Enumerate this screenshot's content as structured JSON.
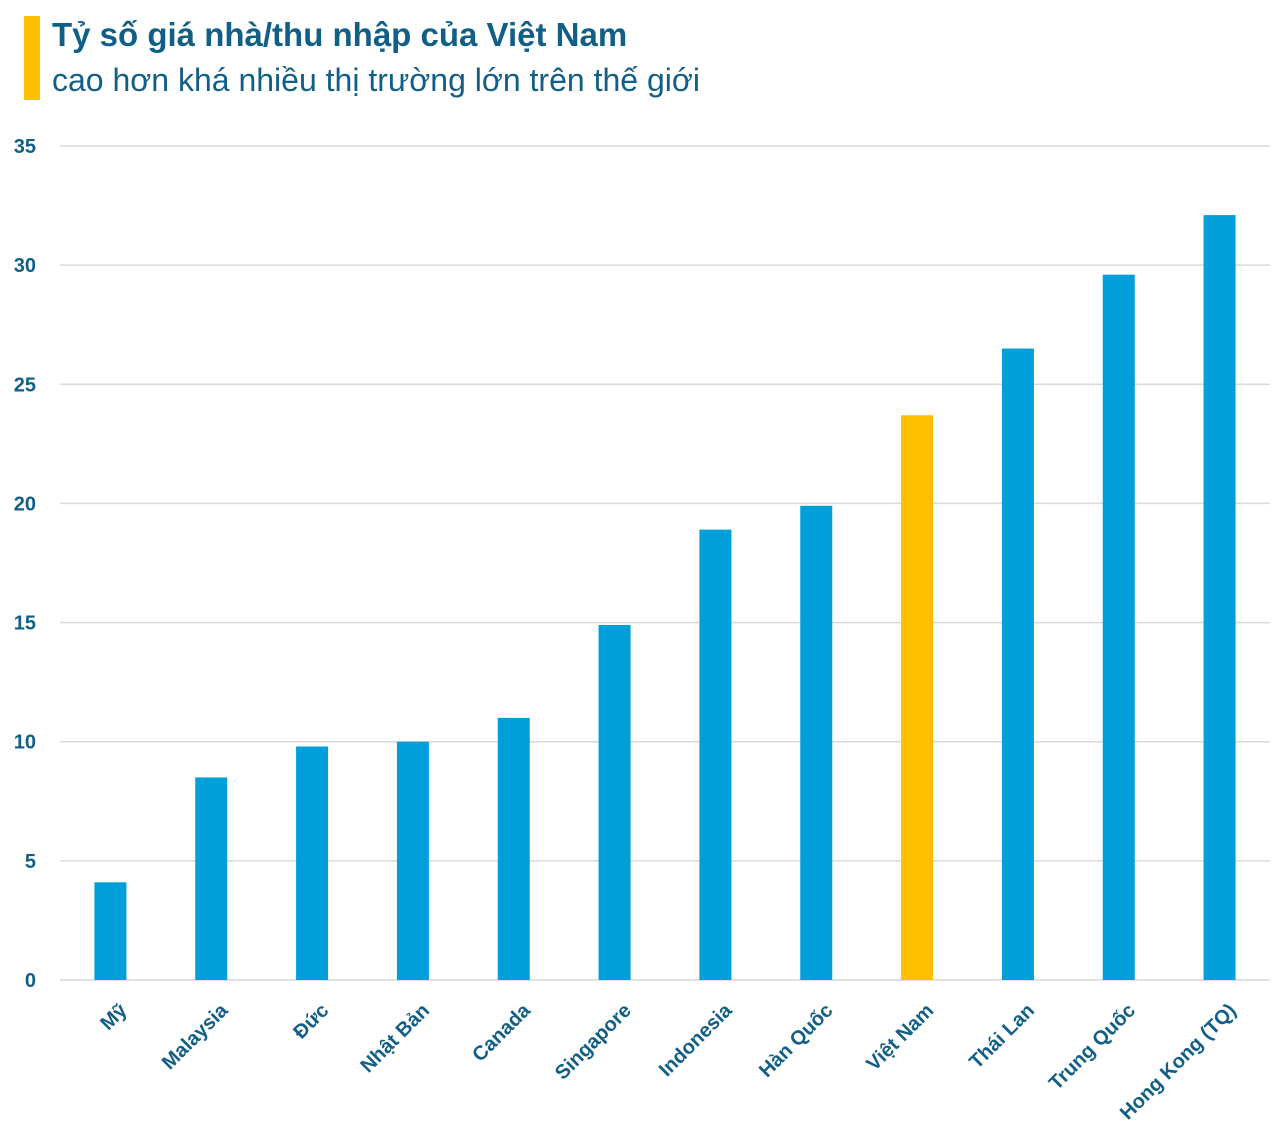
{
  "header": {
    "title": "Tỷ số giá nhà/thu nhập của Việt Nam",
    "subtitle": "cao hơn khá nhiều thị trường lớn trên thế giới"
  },
  "colors": {
    "bar": "#009FD9",
    "highlight": "#FFC000",
    "text": "#115F86",
    "grid": "#D9D9D9"
  },
  "chart_data": {
    "type": "bar",
    "title": "Tỷ số giá nhà/thu nhập của Việt Nam cao hơn khá nhiều thị trường lớn trên thế giới",
    "categories": [
      "Mỹ",
      "Malaysia",
      "Đức",
      "Nhật Bản",
      "Canada",
      "Singapore",
      "Indonesia",
      "Hàn Quốc",
      "Việt Nam",
      "Thái Lan",
      "Trung Quốc",
      "Hong Kong (TQ)"
    ],
    "values": [
      4.1,
      8.5,
      9.8,
      10.0,
      11.0,
      14.9,
      18.9,
      19.9,
      23.7,
      26.5,
      29.6,
      32.1
    ],
    "highlight_category": "Việt Nam",
    "ylim": [
      0,
      35
    ],
    "yticks": [
      0,
      5,
      10,
      15,
      20,
      25,
      30,
      35
    ],
    "grid": true,
    "legend": "none",
    "xlabel": "",
    "ylabel": ""
  }
}
